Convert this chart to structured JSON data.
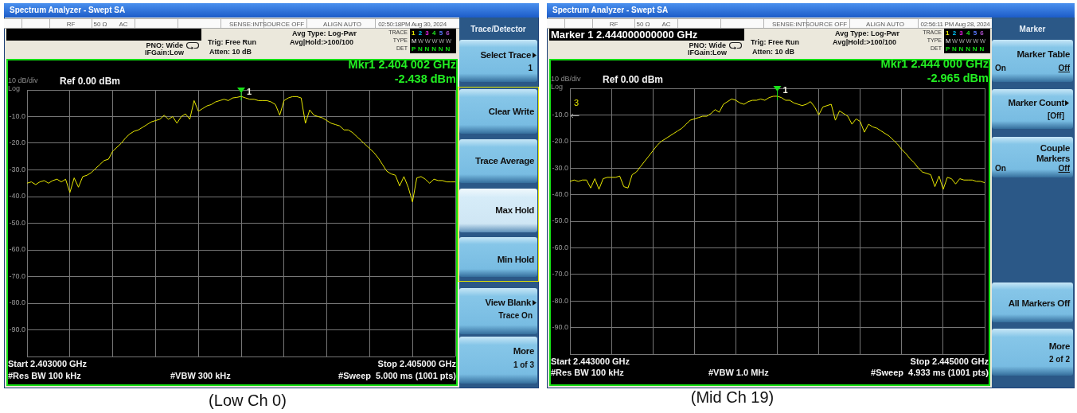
{
  "chart_data": [
    {
      "type": "line",
      "title": "Spectrum Analyzer - Swept SA",
      "categories": [
        null,
        null,
        null,
        null,
        null,
        null,
        null,
        null,
        null,
        null,
        null,
        null,
        null,
        null,
        null,
        null,
        null,
        null,
        null,
        null,
        null,
        null,
        null,
        null,
        null,
        null,
        null,
        null,
        null,
        null,
        null,
        null,
        null,
        null,
        null,
        null,
        null,
        null,
        null,
        null,
        null,
        null,
        null,
        null,
        null,
        null,
        null,
        null,
        null,
        null,
        null,
        null,
        null,
        null,
        null,
        null,
        null,
        null,
        null,
        null,
        null,
        null,
        null,
        null,
        null,
        null,
        null,
        null,
        null,
        null,
        null,
        null,
        null,
        null,
        null,
        null,
        null,
        null,
        null,
        null,
        null,
        null,
        null,
        null,
        null,
        null,
        null,
        null,
        null,
        null,
        null,
        null,
        null,
        null,
        null,
        null,
        null,
        null,
        null,
        null,
        null
      ],
      "series": [
        {
          "color": "#e8e800",
          "values": [
            -35,
            -34.5,
            -35.5,
            -34.5,
            -34,
            -35,
            -34,
            -33.5,
            -34.5,
            -33.5,
            -38.5,
            -33,
            -36.5,
            -32.5,
            -32,
            -31,
            -29.5,
            -28,
            -26.5,
            -26,
            -23,
            -21.5,
            -20,
            -18,
            -16.5,
            -15.5,
            -15,
            -14,
            -13,
            -12,
            -11.5,
            -11,
            -9.5,
            -11,
            -10,
            -12.5,
            -10,
            -9,
            -11,
            -4,
            -8,
            -7,
            -6,
            -5.5,
            -4.5,
            -4,
            -3.5,
            -4,
            -3,
            -2.8,
            -2.438,
            -3,
            -3.5,
            -3.5,
            -4,
            -4,
            -4,
            -4.5,
            -5.5,
            -9.5,
            -4,
            -3,
            -2.5,
            -2.5,
            -3,
            -12.5,
            -7.5,
            -9.5,
            -10,
            -10.5,
            -11.5,
            -12.5,
            -13,
            -13.5,
            -15,
            -15,
            -16,
            -17.5,
            -19,
            -20.5,
            -22,
            -23.5,
            -25.5,
            -28,
            -30.5,
            -31.5,
            -32,
            -36,
            -32.5,
            -36.5,
            -42,
            -33,
            -32.5,
            -33.5,
            -35,
            -33.5,
            -34,
            -34,
            -34.5,
            -34.5,
            -34.5
          ]
        }
      ],
      "ylim": [
        -100,
        0
      ],
      "yticks": [
        {
          "value": 0,
          "label": null
        },
        {
          "value": -10,
          "label": "-10.0"
        },
        {
          "value": -20,
          "label": "-20.0"
        },
        {
          "value": -30,
          "label": "-30.0"
        },
        {
          "value": -40,
          "label": "-40.0"
        },
        {
          "value": -50,
          "label": "-50.0"
        },
        {
          "value": -60,
          "label": "-60.0"
        },
        {
          "value": -70,
          "label": "-70.0"
        },
        {
          "value": -80,
          "label": "-80.0"
        },
        {
          "value": -90,
          "label": "-90.0"
        },
        {
          "value": -100,
          "label": null
        }
      ],
      "grid": true,
      "tick_labels": "y",
      "marker": "none",
      "annotations": [
        "RF",
        "50 Ω",
        "AC",
        "SENSE:INT",
        "SOURCE OFF",
        "ALIGN AUTO",
        "02:50:18PM Aug 30, 2024",
        "PNO: Wide",
        "IFGain:Low",
        "Trig: Free Run",
        "Atten: 10 dB",
        "Avg Type: Log-Pwr",
        "Avg|Hold:>100/100",
        "TRACE",
        "1 2 3 4 5 6",
        "TYPE",
        "M W W W W W",
        "DET",
        "P N N N N N",
        "10 dB/div",
        "Log",
        "Ref 0.00 dBm",
        "Mkr1 2.404 002 GHz",
        "-2.438 dBm",
        {
          "text": "1",
          "y": -2.438
        },
        "Start 2.403000 GHz",
        "Stop 2.405000 GHz",
        "#Res BW 100 kHz",
        "#VBW 300 kHz",
        "#Sweep  5.000 ms (1001 pts)",
        "Trace/Detector",
        "Select Trace",
        "1",
        "Clear Write",
        "Trace Average",
        "Max Hold",
        "Min Hold",
        "View Blank",
        "Trace On",
        "More",
        "1 of 3",
        "(Low Ch 0)"
      ]
    },
    {
      "type": "line",
      "title": "Spectrum Analyzer - Swept SA",
      "categories": [
        null,
        null,
        null,
        null,
        null,
        null,
        null,
        null,
        null,
        null,
        null,
        null,
        null,
        null,
        null,
        null,
        null,
        null,
        null,
        null,
        null,
        null,
        null,
        null,
        null,
        null,
        null,
        null,
        null,
        null,
        null,
        null,
        null,
        null,
        null,
        null,
        null,
        null,
        null,
        null,
        null,
        null,
        null,
        null,
        null,
        null,
        null,
        null,
        null,
        null,
        null,
        null,
        null,
        null,
        null,
        null,
        null,
        null,
        null,
        null,
        null,
        null,
        null,
        null,
        null,
        null,
        null,
        null,
        null,
        null,
        null,
        null,
        null,
        null,
        null,
        null,
        null,
        null,
        null,
        null,
        null,
        null,
        null,
        null,
        null,
        null,
        null,
        null,
        null,
        null,
        null,
        null,
        null,
        null,
        null,
        null,
        null,
        null,
        null,
        null,
        null
      ],
      "series": [
        {
          "color": "#e8e800",
          "values": [
            -35,
            -34.5,
            -35,
            -34.5,
            -34.5,
            -37.5,
            -34,
            -38,
            -34,
            -33.5,
            -33.5,
            -33.5,
            -33,
            -37,
            -37.5,
            -32.5,
            -31.5,
            -29.5,
            -27.5,
            -25.5,
            -23.5,
            -21.5,
            -20,
            -19,
            -18,
            -17,
            -16,
            -15,
            -13.5,
            -12,
            -11.5,
            -11,
            -10.5,
            -10.5,
            -9.5,
            -8,
            -9,
            -6,
            -5,
            -4,
            -4.5,
            -5.5,
            -6,
            -5,
            -4.5,
            -4.5,
            -4,
            -4.5,
            -3.5,
            -3,
            -2.965,
            -3.5,
            -4.5,
            -4.5,
            -5.5,
            -6,
            -6.5,
            -6,
            -5,
            -7,
            -10,
            -7,
            -6.5,
            -6,
            -12,
            -8.5,
            -9.5,
            -10.5,
            -13.5,
            -11.5,
            -12.5,
            -16.5,
            -13.5,
            -14.5,
            -15,
            -16,
            -17,
            -18,
            -19.5,
            -21,
            -23,
            -24.5,
            -26.5,
            -28,
            -30,
            -31.5,
            -32,
            -32.5,
            -37,
            -33,
            -38,
            -33.5,
            -34,
            -36,
            -34,
            -34.5,
            -34.5,
            -34.5,
            -35,
            -35,
            -35.5
          ]
        }
      ],
      "ylim": [
        -100,
        0
      ],
      "yticks": [
        {
          "value": 0,
          "label": null
        },
        {
          "value": -10,
          "label": "-10.0"
        },
        {
          "value": -20,
          "label": "-20.0"
        },
        {
          "value": -30,
          "label": "-30.0"
        },
        {
          "value": -40,
          "label": "-40.0"
        },
        {
          "value": -50,
          "label": "-50.0"
        },
        {
          "value": -60,
          "label": "-60.0"
        },
        {
          "value": -70,
          "label": "-70.0"
        },
        {
          "value": -80,
          "label": "-80.0"
        },
        {
          "value": -90,
          "label": "-90.0"
        },
        {
          "value": -100,
          "label": null
        }
      ],
      "grid": true,
      "tick_labels": "y",
      "marker": "none",
      "annotations": [
        "RF",
        "50 Ω",
        "AC",
        "SENSE:INT",
        "SOURCE OFF",
        "ALIGN AUTO",
        "02:56:11 PM Aug 28, 2024",
        "PNO: Wide",
        "IFGain:Low",
        "Trig: Free Run",
        "Atten: 10 dB",
        "Avg Type: Log-Pwr",
        "Avg|Hold:>100/100",
        "TRACE",
        "1 2 3 4 5 6",
        "TYPE",
        "M W W W W W",
        "DET",
        "P N N N N N",
        "Marker 1 2.444000000000 GHz",
        "10 dB/div",
        "Log",
        "Ref 0.00 dBm",
        "Mkr1 2.444 000 GHz",
        "-2.965 dBm",
        {
          "text": "1",
          "y": -2.965
        },
        "3",
        "Start 2.443000 GHz",
        "Stop 2.445000 GHz",
        "#Res BW 100 kHz",
        "#VBW 1.0 MHz",
        "#Sweep  4.933 ms (1001 pts)",
        "Marker",
        "Marker Table",
        "On",
        "Off",
        "Marker Count",
        "[Off]",
        "Couple",
        "Markers",
        "On",
        "Off",
        "All Markers Off",
        "More",
        "2 of 2",
        "(Mid Ch 19)"
      ]
    }
  ]
}
